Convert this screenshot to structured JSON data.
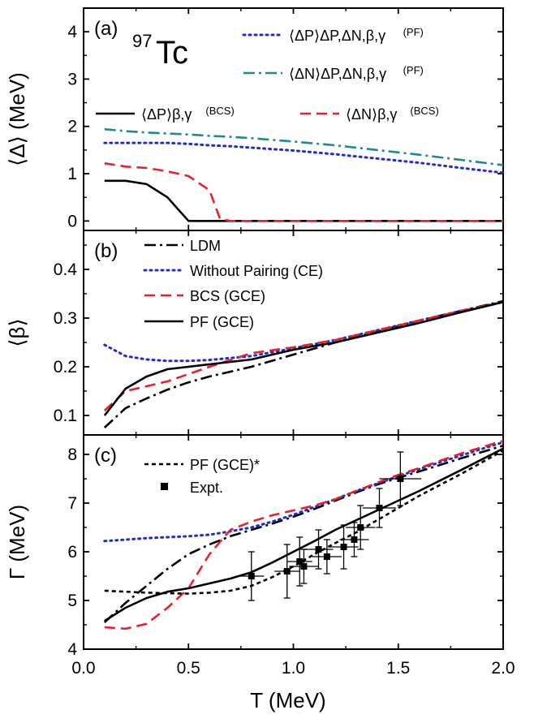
{
  "figure": {
    "x_axis": {
      "label": "T (MeV)",
      "range": [
        0.0,
        2.0
      ],
      "ticks": [
        0.0,
        0.5,
        1.0,
        1.5,
        2.0
      ]
    },
    "isotope": {
      "mass": "97",
      "symbol": "Tc"
    }
  },
  "chart_data": [
    {
      "panel": "(a)",
      "type": "line",
      "ylabel": "⟨Δ⟩ (MeV)",
      "ylim": [
        -0.2,
        4.5
      ],
      "yticks": [
        0,
        1,
        2,
        3,
        4
      ],
      "x": [
        0.1,
        0.2,
        0.3,
        0.4,
        0.45,
        0.5,
        0.6,
        0.65,
        0.7,
        0.8,
        1.0,
        1.2,
        1.4,
        1.6,
        1.8,
        2.0
      ],
      "series": [
        {
          "id": "dp_pf",
          "legend": "⟨ΔP⟩ΔP,ΔN,β,γ",
          "legend_sub": "(PF)",
          "color": "#1f2bd6",
          "style": "dot",
          "values": [
            1.65,
            1.65,
            1.65,
            1.65,
            1.64,
            1.63,
            1.6,
            1.59,
            1.58,
            1.55,
            1.49,
            1.41,
            1.32,
            1.23,
            1.12,
            1.02
          ]
        },
        {
          "id": "dn_pf",
          "legend": "⟨ΔN⟩ΔP,ΔN,β,γ",
          "legend_sub": "(PF)",
          "color": "#1e8a8a",
          "style": "dashdot",
          "values": [
            1.94,
            1.9,
            1.87,
            1.85,
            1.84,
            1.83,
            1.8,
            1.79,
            1.78,
            1.75,
            1.68,
            1.6,
            1.5,
            1.4,
            1.29,
            1.18
          ]
        },
        {
          "id": "dp_bcs",
          "legend": "⟨ΔP⟩β,γ",
          "legend_sub": "(BCS)",
          "color": "#000000",
          "style": "solid",
          "values": [
            0.85,
            0.85,
            0.78,
            0.5,
            0.25,
            0.0,
            0.0,
            0.0,
            0.0,
            0.0,
            0.0,
            0.0,
            0.0,
            0.0,
            0.0,
            0.0
          ]
        },
        {
          "id": "dn_bcs",
          "legend": "⟨ΔN⟩β,γ",
          "legend_sub": "(BCS)",
          "color": "#e8202a",
          "style": "dash",
          "values": [
            1.22,
            1.15,
            1.12,
            1.05,
            1.0,
            0.95,
            0.65,
            0.05,
            0.0,
            0.0,
            0.0,
            0.0,
            0.0,
            0.0,
            0.0,
            0.0
          ]
        }
      ]
    },
    {
      "panel": "(b)",
      "type": "line",
      "ylabel": "⟨β⟩",
      "ylim": [
        0.06,
        0.48
      ],
      "yticks": [
        0.1,
        0.2,
        0.3,
        0.4
      ],
      "x": [
        0.1,
        0.2,
        0.3,
        0.4,
        0.5,
        0.6,
        0.8,
        1.0,
        1.2,
        1.4,
        1.6,
        1.8,
        2.0
      ],
      "series": [
        {
          "id": "ldm",
          "legend": "LDM",
          "color": "#000000",
          "style": "dashdot",
          "values": [
            0.075,
            0.115,
            0.135,
            0.153,
            0.168,
            0.18,
            0.2,
            0.225,
            0.25,
            0.272,
            0.295,
            0.315,
            0.335
          ]
        },
        {
          "id": "noPair",
          "legend": "Without Pairing (CE)",
          "color": "#1f2bd6",
          "style": "dot",
          "values": [
            0.245,
            0.222,
            0.215,
            0.212,
            0.212,
            0.214,
            0.222,
            0.238,
            0.255,
            0.275,
            0.295,
            0.315,
            0.333
          ]
        },
        {
          "id": "bcs",
          "legend": "BCS (GCE)",
          "color": "#e8202a",
          "style": "dash",
          "values": [
            0.11,
            0.15,
            0.16,
            0.17,
            0.185,
            0.2,
            0.228,
            0.24,
            0.255,
            0.275,
            0.295,
            0.315,
            0.333
          ]
        },
        {
          "id": "pf",
          "legend": "PF (GCE)",
          "color": "#000000",
          "style": "solid",
          "values": [
            0.1,
            0.155,
            0.18,
            0.195,
            0.2,
            0.205,
            0.215,
            0.235,
            0.25,
            0.27,
            0.29,
            0.312,
            0.333
          ]
        }
      ]
    },
    {
      "panel": "(c)",
      "type": "line",
      "ylabel": "Γ (MeV)",
      "ylim": [
        4.0,
        8.4
      ],
      "yticks": [
        4,
        5,
        6,
        7,
        8
      ],
      "x": [
        0.1,
        0.2,
        0.3,
        0.4,
        0.5,
        0.6,
        0.7,
        0.8,
        0.9,
        1.0,
        1.1,
        1.2,
        1.3,
        1.4,
        1.5,
        1.6,
        1.8,
        2.0
      ],
      "series": [
        {
          "id": "ldm",
          "color": "#000000",
          "style": "dashdot",
          "values": [
            4.55,
            4.95,
            5.3,
            5.65,
            5.95,
            6.15,
            6.32,
            6.45,
            6.58,
            6.72,
            6.88,
            7.05,
            7.22,
            7.38,
            7.52,
            7.65,
            7.92,
            8.18
          ]
        },
        {
          "id": "noPair",
          "color": "#1f2bd6",
          "style": "dot",
          "values": [
            6.22,
            6.25,
            6.28,
            6.3,
            6.32,
            6.35,
            6.42,
            6.5,
            6.62,
            6.76,
            6.92,
            7.08,
            7.25,
            7.4,
            7.55,
            7.7,
            7.98,
            8.25
          ]
        },
        {
          "id": "bcs",
          "color": "#e8202a",
          "style": "dash",
          "values": [
            4.45,
            4.42,
            4.52,
            4.85,
            5.25,
            5.95,
            6.45,
            6.62,
            6.75,
            6.85,
            6.95,
            7.08,
            7.25,
            7.42,
            7.58,
            7.72,
            8.02,
            8.28
          ]
        },
        {
          "id": "pf",
          "color": "#000000",
          "style": "solid",
          "values": [
            4.58,
            4.85,
            5.05,
            5.18,
            5.25,
            5.35,
            5.45,
            5.58,
            5.78,
            6.0,
            6.22,
            6.45,
            6.65,
            6.85,
            7.05,
            7.25,
            7.68,
            8.12
          ]
        },
        {
          "id": "pfStar",
          "legend": "PF (GCE)*",
          "color": "#000000",
          "style": "shortdash",
          "values": [
            5.2,
            5.18,
            5.16,
            5.15,
            5.14,
            5.16,
            5.2,
            5.3,
            5.48,
            5.7,
            5.95,
            6.18,
            6.4,
            6.65,
            6.9,
            7.15,
            7.6,
            8.08
          ]
        }
      ],
      "experiment": {
        "legend": "Expt.",
        "points": [
          {
            "x": 0.8,
            "y": 5.5,
            "yerr": 0.5,
            "xerr": 0.06
          },
          {
            "x": 0.97,
            "y": 5.6,
            "yerr": 0.55,
            "xerr": 0.06
          },
          {
            "x": 1.03,
            "y": 5.8,
            "yerr": 0.5,
            "xerr": 0.06
          },
          {
            "x": 1.05,
            "y": 5.7,
            "yerr": 0.35,
            "xerr": 0.07
          },
          {
            "x": 1.12,
            "y": 6.05,
            "yerr": 0.4,
            "xerr": 0.07
          },
          {
            "x": 1.16,
            "y": 5.9,
            "yerr": 0.35,
            "xerr": 0.07
          },
          {
            "x": 1.24,
            "y": 6.1,
            "yerr": 0.45,
            "xerr": 0.07
          },
          {
            "x": 1.29,
            "y": 6.25,
            "yerr": 0.35,
            "xerr": 0.07
          },
          {
            "x": 1.32,
            "y": 6.5,
            "yerr": 0.45,
            "xerr": 0.07
          },
          {
            "x": 1.41,
            "y": 6.9,
            "yerr": 0.4,
            "xerr": 0.08
          },
          {
            "x": 1.51,
            "y": 7.5,
            "yerr": 0.55,
            "xerr": 0.1
          }
        ]
      }
    }
  ]
}
